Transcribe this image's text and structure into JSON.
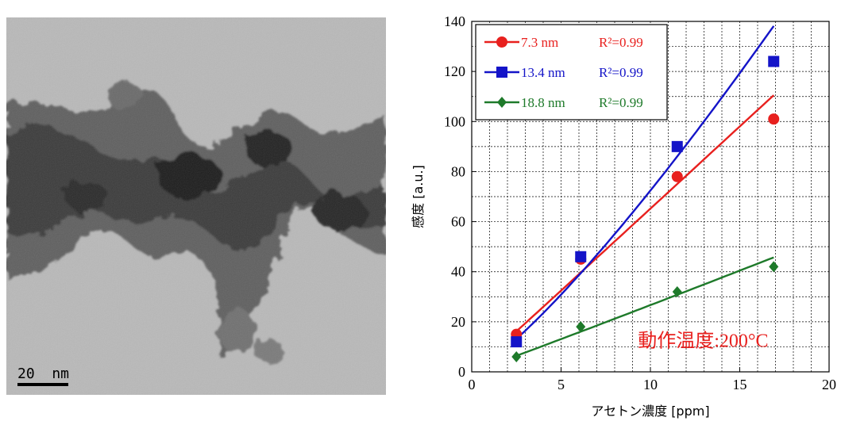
{
  "micrograph": {
    "scale_bar_label": "20  nm"
  },
  "chart_data": {
    "type": "scatter",
    "xlabel": "アセトン濃度 [ppm]",
    "ylabel": "感度 [a.u.]",
    "xlim": [
      0,
      20
    ],
    "ylim": [
      0,
      140
    ],
    "xticks": [
      0,
      5,
      10,
      15,
      20
    ],
    "yticks": [
      0,
      20,
      40,
      60,
      80,
      100,
      120,
      140
    ],
    "grid": true,
    "legend_position": "top-left",
    "annotation": "動作温度:200°C",
    "series": [
      {
        "name": "7.3 nm",
        "r2_label": "R²=0.99",
        "color": "#e8201e",
        "marker": "circle",
        "x": [
          2.5,
          6.1,
          11.5,
          16.9
        ],
        "y": [
          15,
          45,
          78,
          101
        ],
        "fit": "power"
      },
      {
        "name": "13.4 nm",
        "r2_label": "R²=0.99",
        "color": "#1414c8",
        "marker": "square",
        "x": [
          2.5,
          6.1,
          11.5,
          16.9
        ],
        "y": [
          12,
          46,
          90,
          124
        ],
        "fit": "power"
      },
      {
        "name": "18.8 nm",
        "r2_label": "R²=0.99",
        "color": "#1e7a2a",
        "marker": "diamond",
        "x": [
          2.5,
          6.1,
          11.5,
          16.9
        ],
        "y": [
          6,
          18,
          32,
          42
        ],
        "fit": "power"
      }
    ]
  }
}
